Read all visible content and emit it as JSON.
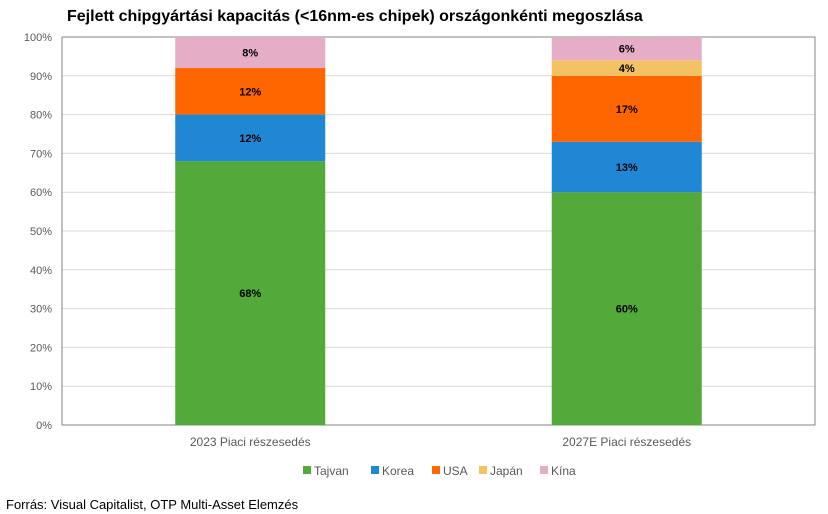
{
  "chart_data": {
    "type": "bar",
    "stacked": true,
    "title": "Fejlett chipgyártási kapacitás (<16nm-es chipek) országonkénti megoszlása",
    "categories": [
      "2023 Piaci részesedés",
      "2027E Piaci részesedés"
    ],
    "series": [
      {
        "name": "Tajvan",
        "values": [
          68,
          60
        ],
        "color": "#53a93a"
      },
      {
        "name": "Korea",
        "values": [
          12,
          13
        ],
        "color": "#1f87d3"
      },
      {
        "name": "USA",
        "values": [
          12,
          17
        ],
        "color": "#ff6600"
      },
      {
        "name": "Japán",
        "values": [
          0,
          4
        ],
        "color": "#f2c263"
      },
      {
        "name": "Kína",
        "values": [
          8,
          6
        ],
        "color": "#e5aec6"
      }
    ],
    "ylim": [
      0,
      100
    ],
    "yticks": [
      "0%",
      "10%",
      "20%",
      "30%",
      "40%",
      "50%",
      "60%",
      "70%",
      "80%",
      "90%",
      "100%"
    ],
    "grid": true,
    "legend": "bottom",
    "xlabel": "",
    "ylabel": ""
  },
  "source": "Forrás: Visual Capitalist, OTP Multi-Asset Elemzés"
}
